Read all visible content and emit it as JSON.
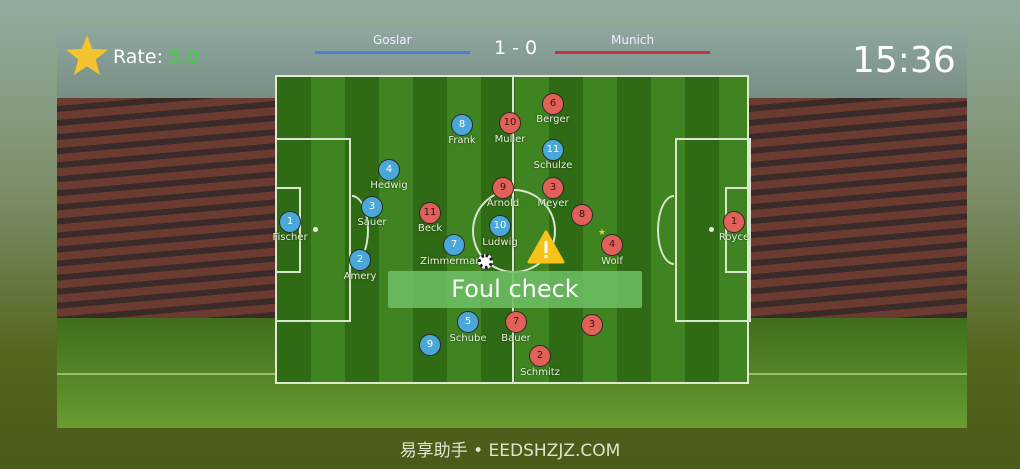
{
  "hud": {
    "rate_label": "Rate:",
    "rate_value": "5.0",
    "home_team": "Goslar",
    "away_team": "Munich",
    "score": "1 - 0",
    "clock": "15:36",
    "home_color": "#4a7fd8",
    "away_color": "#c8304a"
  },
  "players": {
    "blue": [
      {
        "number": "1",
        "name": "Fischer"
      },
      {
        "number": "8",
        "name": "Frank"
      },
      {
        "number": "4",
        "name": "Hedwig"
      },
      {
        "number": "3",
        "name": "Sauer"
      },
      {
        "number": "7",
        "name": "Zimmermann"
      },
      {
        "number": "2",
        "name": "Amery"
      },
      {
        "number": "11",
        "name": "Schulze"
      },
      {
        "number": "10",
        "name": "Ludwig"
      },
      {
        "number": "5",
        "name": "Schube"
      },
      {
        "number": "9",
        "name": ""
      }
    ],
    "red": [
      {
        "number": "10",
        "name": "Muller"
      },
      {
        "number": "6",
        "name": "Berger"
      },
      {
        "number": "11",
        "name": "Beck"
      },
      {
        "number": "9",
        "name": "Arnold"
      },
      {
        "number": "3",
        "name": "Meyer"
      },
      {
        "number": "4",
        "name": "Wolf"
      },
      {
        "number": "3",
        "name": ""
      },
      {
        "number": "7",
        "name": "Bauer"
      },
      {
        "number": "2",
        "name": "Schmitz"
      },
      {
        "number": "1",
        "name": "Royce"
      },
      {
        "number": "8",
        "name": ""
      }
    ]
  },
  "event": {
    "label": "Foul check",
    "icon": "warning-icon"
  },
  "watermark": "易享助手 • EEDSHZJZ.COM"
}
